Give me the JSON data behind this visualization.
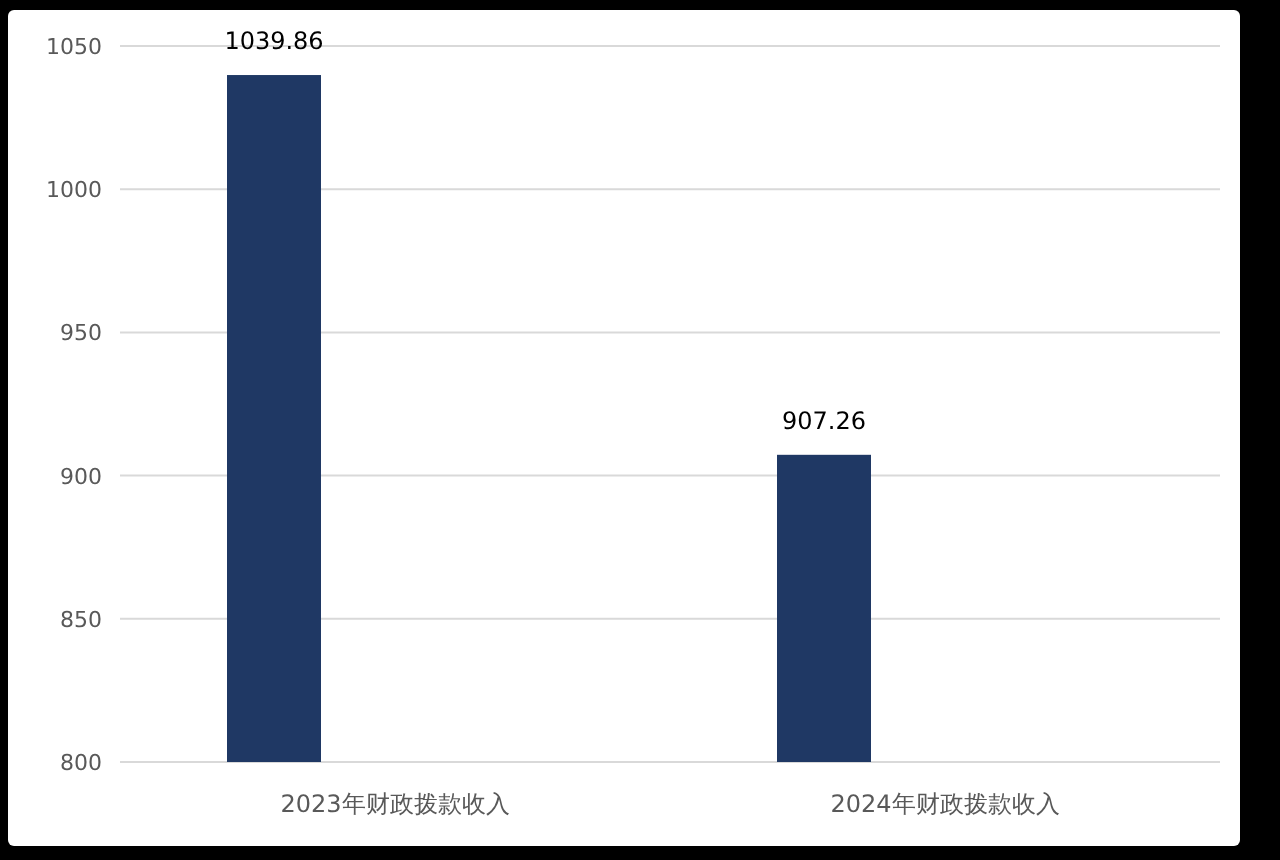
{
  "chart_data": {
    "type": "bar",
    "categories": [
      "2023年财政拨款收入",
      "2024年财政拨款收入"
    ],
    "values": [
      1039.86,
      907.26
    ],
    "color": "#1f3864",
    "ylim": [
      800,
      1050
    ],
    "yticks": [
      800,
      850,
      900,
      950,
      1000,
      1050
    ],
    "grid": "y",
    "data_labels": true
  }
}
